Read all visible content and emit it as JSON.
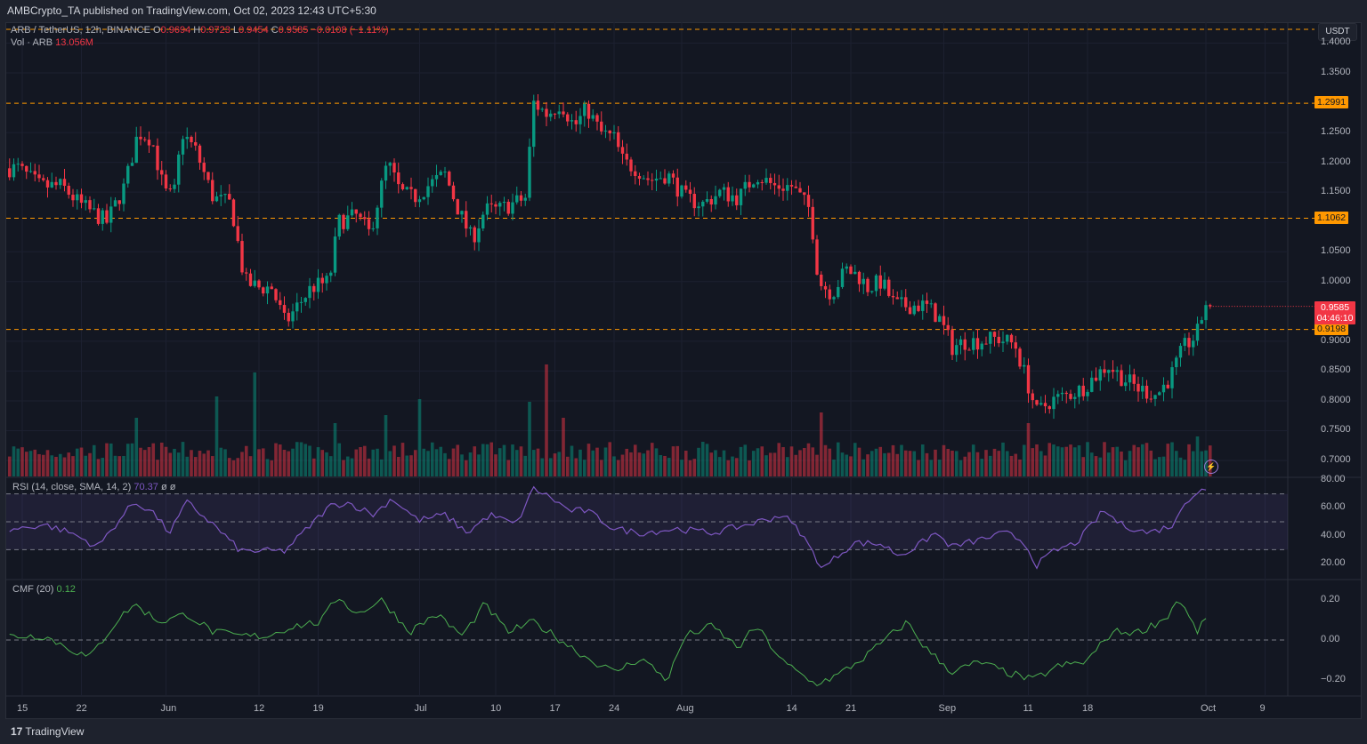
{
  "header": {
    "publisher": "AMBCrypto_TA published on TradingView.com, Oct 02, 2023 12:43 UTC+5:30"
  },
  "legend": {
    "symbol": "ARB / TetherUS, 12h, BINANCE",
    "o_label": "O",
    "o": "0.9694",
    "h_label": "H",
    "h": "0.9723",
    "l_label": "L",
    "l": "0.9454",
    "c_label": "C",
    "c": "0.9585",
    "change": "−0.0108 (−1.11%)"
  },
  "volume": {
    "label": "Vol · ARB",
    "value": "13.056M"
  },
  "rsi": {
    "label": "RSI (14, close, SMA, 14, 2)",
    "value": "70.37",
    "extra1": "ø",
    "extra2": "ø"
  },
  "cmf": {
    "label": "CMF (20)",
    "value": "0.12"
  },
  "currency_button": "USDT",
  "price_tag": {
    "price": "0.9585",
    "countdown": "04:46:10"
  },
  "footer": {
    "logo": "17",
    "brand": "TradingView"
  },
  "colors": {
    "up": "#089981",
    "down": "#f23645",
    "level": "#ff9800",
    "rsi": "#7e57c2",
    "cmf": "#4caf50"
  },
  "chart_data": {
    "type": "candlestick",
    "title": "ARB / TetherUS, 12h, BINANCE",
    "x_unit": "days since May 15 2023",
    "x_ticks": [
      {
        "d": 0,
        "label": "15"
      },
      {
        "d": 7,
        "label": "22"
      },
      {
        "d": 17,
        "label": "Jun"
      },
      {
        "d": 28,
        "label": "12"
      },
      {
        "d": 35,
        "label": "19"
      },
      {
        "d": 47,
        "label": "Jul"
      },
      {
        "d": 56,
        "label": "10"
      },
      {
        "d": 63,
        "label": "17"
      },
      {
        "d": 70,
        "label": "24"
      },
      {
        "d": 78,
        "label": "Aug"
      },
      {
        "d": 91,
        "label": "14"
      },
      {
        "d": 98,
        "label": "21"
      },
      {
        "d": 109,
        "label": "Sep"
      },
      {
        "d": 119,
        "label": "11"
      },
      {
        "d": 126,
        "label": "18"
      },
      {
        "d": 140,
        "label": "Oct"
      },
      {
        "d": 147,
        "label": "9"
      }
    ],
    "price_ticks": [
      "1.4000",
      "1.3500",
      "1.2500",
      "1.2000",
      "1.1500",
      "1.0500",
      "1.0000",
      "0.9000",
      "0.8500",
      "0.8000",
      "0.7500",
      "0.7000"
    ],
    "price_range": [
      0.69,
      1.42
    ],
    "levels": [
      {
        "price": 1.423,
        "label": ""
      },
      {
        "price": 1.2991,
        "label": "1.2991"
      },
      {
        "price": 1.1062,
        "label": "1.1062"
      },
      {
        "price": 0.9198,
        "label": "0.9198"
      }
    ],
    "close_anchors": [
      [
        -1.6,
        1.19
      ],
      [
        -0.5,
        1.19
      ],
      [
        2.1,
        1.16
      ],
      [
        4.7,
        1.16
      ],
      [
        6.8,
        1.13
      ],
      [
        10,
        1.1
      ],
      [
        12.1,
        1.16
      ],
      [
        13.7,
        1.25
      ],
      [
        15.3,
        1.24
      ],
      [
        16.8,
        1.15
      ],
      [
        17.9,
        1.14
      ],
      [
        18.9,
        1.25
      ],
      [
        20.5,
        1.22
      ],
      [
        22.6,
        1.14
      ],
      [
        24.7,
        1.13
      ],
      [
        26.3,
        1.0
      ],
      [
        27.9,
        0.99
      ],
      [
        29.5,
        0.99
      ],
      [
        31.1,
        0.93
      ],
      [
        32.6,
        0.96
      ],
      [
        34.2,
        0.99
      ],
      [
        36.3,
        1.0
      ],
      [
        37.4,
        1.1
      ],
      [
        39.5,
        1.11
      ],
      [
        41.1,
        1.08
      ],
      [
        43.2,
        1.2
      ],
      [
        44.7,
        1.15
      ],
      [
        46.3,
        1.14
      ],
      [
        47.9,
        1.16
      ],
      [
        50,
        1.18
      ],
      [
        51.6,
        1.12
      ],
      [
        53.2,
        1.07
      ],
      [
        54.7,
        1.12
      ],
      [
        56.3,
        1.12
      ],
      [
        57.9,
        1.13
      ],
      [
        59.5,
        1.14
      ],
      [
        60.5,
        1.3
      ],
      [
        62.1,
        1.28
      ],
      [
        63.7,
        1.3
      ],
      [
        65.3,
        1.26
      ],
      [
        66.8,
        1.29
      ],
      [
        68.4,
        1.25
      ],
      [
        70,
        1.24
      ],
      [
        71.1,
        1.2
      ],
      [
        72.6,
        1.19
      ],
      [
        74.2,
        1.17
      ],
      [
        76.3,
        1.18
      ],
      [
        78.4,
        1.14
      ],
      [
        80.5,
        1.13
      ],
      [
        82.6,
        1.15
      ],
      [
        84.7,
        1.14
      ],
      [
        86.8,
        1.18
      ],
      [
        88.9,
        1.16
      ],
      [
        91,
        1.16
      ],
      [
        93.2,
        1.12
      ],
      [
        94.2,
        1.0
      ],
      [
        95.8,
        0.98
      ],
      [
        97.4,
        1.02
      ],
      [
        98.9,
        1.01
      ],
      [
        100,
        0.99
      ],
      [
        101.6,
        1.0
      ],
      [
        103.2,
        0.96
      ],
      [
        104.7,
        0.96
      ],
      [
        106.8,
        0.96
      ],
      [
        108.4,
        0.94
      ],
      [
        110,
        0.89
      ],
      [
        111.6,
        0.9
      ],
      [
        113.2,
        0.9
      ],
      [
        115.3,
        0.905
      ],
      [
        117.4,
        0.895
      ],
      [
        118.9,
        0.83
      ],
      [
        120,
        0.78
      ],
      [
        121.6,
        0.8
      ],
      [
        123.7,
        0.81
      ],
      [
        125.3,
        0.82
      ],
      [
        126.8,
        0.84
      ],
      [
        128.4,
        0.86
      ],
      [
        130,
        0.84
      ],
      [
        132.1,
        0.82
      ],
      [
        134.2,
        0.81
      ],
      [
        135.8,
        0.84
      ],
      [
        137.4,
        0.89
      ],
      [
        138.9,
        0.91
      ],
      [
        140,
        0.965
      ],
      [
        140.5,
        0.9585
      ]
    ],
    "volume_spikes": [
      [
        13.5,
        2.2
      ],
      [
        23,
        3.0
      ],
      [
        27.5,
        3.9
      ],
      [
        37,
        2.0
      ],
      [
        43,
        2.3
      ],
      [
        47,
        2.9
      ],
      [
        60,
        2.8
      ],
      [
        62,
        4.2
      ],
      [
        64,
        2.2
      ],
      [
        94.5,
        2.4
      ],
      [
        119,
        2.0
      ],
      [
        139,
        1.5
      ]
    ],
    "rsi_range": [
      10,
      85
    ],
    "rsi_bands": [
      70,
      50,
      30
    ],
    "rsi_ticks": [
      "80.00",
      "60.00",
      "40.00",
      "20.00"
    ],
    "rsi_anchors": [
      [
        -1.6,
        44
      ],
      [
        2.6,
        48
      ],
      [
        5.8,
        42
      ],
      [
        8.9,
        32
      ],
      [
        13.2,
        64
      ],
      [
        15.3,
        58
      ],
      [
        17.4,
        42
      ],
      [
        19.5,
        64
      ],
      [
        22.6,
        48
      ],
      [
        25.8,
        29
      ],
      [
        27.9,
        29
      ],
      [
        31,
        29
      ],
      [
        33.2,
        42
      ],
      [
        36.3,
        61
      ],
      [
        38.4,
        64
      ],
      [
        41.6,
        55
      ],
      [
        43.7,
        67
      ],
      [
        46.8,
        51
      ],
      [
        50,
        55
      ],
      [
        52.6,
        42
      ],
      [
        55.3,
        55
      ],
      [
        58.4,
        48
      ],
      [
        60.5,
        74
      ],
      [
        62.6,
        67
      ],
      [
        64.7,
        58
      ],
      [
        66.8,
        58
      ],
      [
        70,
        45
      ],
      [
        73.2,
        42
      ],
      [
        77.4,
        45
      ],
      [
        81.6,
        42
      ],
      [
        85.8,
        48
      ],
      [
        90,
        55
      ],
      [
        92.1,
        42
      ],
      [
        94.7,
        16
      ],
      [
        96.3,
        25
      ],
      [
        98.4,
        35
      ],
      [
        101.6,
        34
      ],
      [
        103.7,
        26
      ],
      [
        105.8,
        32
      ],
      [
        107.9,
        42
      ],
      [
        110,
        32
      ],
      [
        113.2,
        37
      ],
      [
        116.3,
        42
      ],
      [
        118.4,
        36
      ],
      [
        120,
        19
      ],
      [
        122.1,
        29
      ],
      [
        124.7,
        35
      ],
      [
        127.9,
        58
      ],
      [
        130,
        48
      ],
      [
        133.2,
        42
      ],
      [
        136.3,
        48
      ],
      [
        137.4,
        64
      ],
      [
        139.5,
        74
      ],
      [
        140.4,
        70.37
      ]
    ],
    "cmf_range": [
      -0.27,
      0.27
    ],
    "cmf_ticks": [
      "0.20",
      "0.00",
      "−0.20"
    ],
    "cmf_anchors": [
      [
        -1.6,
        0.02
      ],
      [
        2.6,
        0.02
      ],
      [
        7.9,
        -0.09
      ],
      [
        11.1,
        0.09
      ],
      [
        13.2,
        0.18
      ],
      [
        16.3,
        0.09
      ],
      [
        19.5,
        0.13
      ],
      [
        22.6,
        0.04
      ],
      [
        25.8,
        0.02
      ],
      [
        28.9,
        0.02
      ],
      [
        32.1,
        0.07
      ],
      [
        35.3,
        0.09
      ],
      [
        37.4,
        0.22
      ],
      [
        39.5,
        0.13
      ],
      [
        42.6,
        0.2
      ],
      [
        45.8,
        0.04
      ],
      [
        48.9,
        0.13
      ],
      [
        52.1,
        0.02
      ],
      [
        54.7,
        0.18
      ],
      [
        57.4,
        0.04
      ],
      [
        60.5,
        0.09
      ],
      [
        63.7,
        0
      ],
      [
        66.8,
        -0.09
      ],
      [
        70,
        -0.16
      ],
      [
        73.2,
        -0.09
      ],
      [
        76.3,
        -0.2
      ],
      [
        78.4,
        0.02
      ],
      [
        81.6,
        0.07
      ],
      [
        84.7,
        -0.04
      ],
      [
        86.8,
        0.07
      ],
      [
        90,
        -0.11
      ],
      [
        93.7,
        -0.22
      ],
      [
        96.3,
        -0.18
      ],
      [
        99.5,
        -0.09
      ],
      [
        102.6,
        0.02
      ],
      [
        104.7,
        0.09
      ],
      [
        106.8,
        -0.04
      ],
      [
        110,
        -0.16
      ],
      [
        113.2,
        -0.11
      ],
      [
        116.3,
        -0.16
      ],
      [
        119.5,
        -0.2
      ],
      [
        122.6,
        -0.13
      ],
      [
        125.8,
        -0.11
      ],
      [
        128.9,
        0.04
      ],
      [
        132.1,
        0.04
      ],
      [
        135.3,
        0.11
      ],
      [
        136.8,
        0.21
      ],
      [
        138.9,
        0.04
      ],
      [
        140.4,
        0.12
      ]
    ]
  }
}
